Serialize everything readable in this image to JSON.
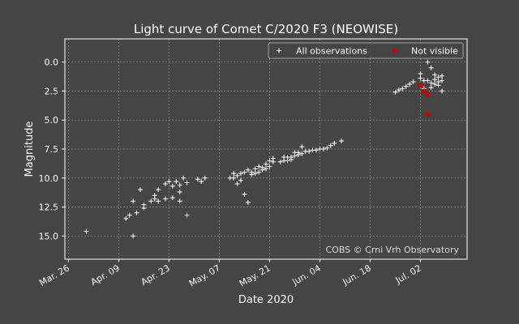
{
  "chart_data": {
    "type": "scatter",
    "title": "Light curve of Comet C/2020 F3 (NEOWISE)",
    "xlabel": "Date 2020",
    "ylabel": "Magnitude",
    "xlim": [
      "2020-03-25",
      "2020-07-15"
    ],
    "ylim": [
      17.0,
      -2.0
    ],
    "y_inverted": true,
    "grid": true,
    "legend_placement": "top-right",
    "x_ticks": [
      {
        "date": "2020-03-26",
        "label": "Mar. 26"
      },
      {
        "date": "2020-04-09",
        "label": "Apr. 09"
      },
      {
        "date": "2020-04-23",
        "label": "Apr. 23"
      },
      {
        "date": "2020-05-07",
        "label": "May. 07"
      },
      {
        "date": "2020-05-21",
        "label": "May. 21"
      },
      {
        "date": "2020-06-04",
        "label": "Jun. 04"
      },
      {
        "date": "2020-06-18",
        "label": "Jun. 18"
      },
      {
        "date": "2020-07-02",
        "label": "Jul. 02"
      }
    ],
    "y_ticks": [
      {
        "value": 0.0,
        "label": "0.0"
      },
      {
        "value": 2.5,
        "label": "2.5"
      },
      {
        "value": 5.0,
        "label": "5.0"
      },
      {
        "value": 7.5,
        "label": "7.5"
      },
      {
        "value": 10.0,
        "label": "10.0"
      },
      {
        "value": 12.5,
        "label": "12.5"
      },
      {
        "value": 15.0,
        "label": "15.0"
      }
    ],
    "annotation": "COBS © Crni Vrh Observatory",
    "series": [
      {
        "name": "All observations",
        "marker": "plus",
        "color": "#ffffff",
        "points": [
          [
            "2020-03-31",
            14.6
          ],
          [
            "2020-04-11",
            13.5
          ],
          [
            "2020-04-12",
            13.2
          ],
          [
            "2020-04-13",
            12.0
          ],
          [
            "2020-04-13",
            15.0
          ],
          [
            "2020-04-14",
            13.0
          ],
          [
            "2020-04-15",
            11.0
          ],
          [
            "2020-04-16",
            12.3
          ],
          [
            "2020-04-16",
            12.6
          ],
          [
            "2020-04-18",
            12.0
          ],
          [
            "2020-04-19",
            11.5
          ],
          [
            "2020-04-19",
            11.8
          ],
          [
            "2020-04-20",
            11.0
          ],
          [
            "2020-04-20",
            12.0
          ],
          [
            "2020-04-22",
            11.8
          ],
          [
            "2020-04-22",
            10.5
          ],
          [
            "2020-04-23",
            10.3
          ],
          [
            "2020-04-24",
            10.7
          ],
          [
            "2020-04-24",
            11.7
          ],
          [
            "2020-04-25",
            10.3
          ],
          [
            "2020-04-26",
            12.0
          ],
          [
            "2020-04-26",
            10.6
          ],
          [
            "2020-04-26",
            11.2
          ],
          [
            "2020-04-27",
            10.0
          ],
          [
            "2020-04-28",
            10.4
          ],
          [
            "2020-04-28",
            13.2
          ],
          [
            "2020-05-01",
            10.1
          ],
          [
            "2020-05-02",
            10.3
          ],
          [
            "2020-05-03",
            10.0
          ],
          [
            "2020-05-10",
            10.0
          ],
          [
            "2020-05-11",
            9.6
          ],
          [
            "2020-05-11",
            10.0
          ],
          [
            "2020-05-12",
            10.5
          ],
          [
            "2020-05-12",
            9.8
          ],
          [
            "2020-05-13",
            9.6
          ],
          [
            "2020-05-13",
            10.2
          ],
          [
            "2020-05-14",
            11.4
          ],
          [
            "2020-05-14",
            9.5
          ],
          [
            "2020-05-15",
            12.1
          ],
          [
            "2020-05-15",
            9.3
          ],
          [
            "2020-05-16",
            9.7
          ],
          [
            "2020-05-16",
            9.5
          ],
          [
            "2020-05-17",
            9.6
          ],
          [
            "2020-05-17",
            9.2
          ],
          [
            "2020-05-18",
            9.0
          ],
          [
            "2020-05-18",
            9.5
          ],
          [
            "2020-05-19",
            9.3
          ],
          [
            "2020-05-19",
            9.1
          ],
          [
            "2020-05-20",
            9.2
          ],
          [
            "2020-05-20",
            8.8
          ],
          [
            "2020-05-21",
            8.5
          ],
          [
            "2020-05-21",
            9.0
          ],
          [
            "2020-05-22",
            8.3
          ],
          [
            "2020-05-22",
            8.6
          ],
          [
            "2020-05-24",
            8.6
          ],
          [
            "2020-05-25",
            8.2
          ],
          [
            "2020-05-25",
            8.5
          ],
          [
            "2020-05-26",
            8.5
          ],
          [
            "2020-05-26",
            8.2
          ],
          [
            "2020-05-27",
            8.4
          ],
          [
            "2020-05-27",
            8.2
          ],
          [
            "2020-05-28",
            8.1
          ],
          [
            "2020-05-28",
            7.8
          ],
          [
            "2020-05-29",
            8.0
          ],
          [
            "2020-05-29",
            7.8
          ],
          [
            "2020-05-30",
            7.3
          ],
          [
            "2020-05-30",
            7.9
          ],
          [
            "2020-05-31",
            7.7
          ],
          [
            "2020-06-01",
            7.7
          ],
          [
            "2020-06-02",
            7.6
          ],
          [
            "2020-06-03",
            7.6
          ],
          [
            "2020-06-04",
            7.5
          ],
          [
            "2020-06-05",
            7.5
          ],
          [
            "2020-06-06",
            7.4
          ],
          [
            "2020-06-07",
            7.2
          ],
          [
            "2020-06-08",
            7.0
          ],
          [
            "2020-06-10",
            6.8
          ],
          [
            "2020-06-25",
            2.6
          ],
          [
            "2020-06-26",
            2.4
          ],
          [
            "2020-06-27",
            2.3
          ],
          [
            "2020-06-28",
            2.1
          ],
          [
            "2020-06-29",
            1.9
          ],
          [
            "2020-06-30",
            1.7
          ],
          [
            "2020-07-02",
            1.4
          ],
          [
            "2020-07-02",
            1.0
          ],
          [
            "2020-07-03",
            1.6
          ],
          [
            "2020-07-03",
            2.3
          ],
          [
            "2020-07-04",
            0.0
          ],
          [
            "2020-07-04",
            1.6
          ],
          [
            "2020-07-05",
            0.5
          ],
          [
            "2020-07-05",
            1.8
          ],
          [
            "2020-07-05",
            2.2
          ],
          [
            "2020-07-06",
            1.1
          ],
          [
            "2020-07-06",
            1.5
          ],
          [
            "2020-07-06",
            1.9
          ],
          [
            "2020-07-07",
            1.3
          ],
          [
            "2020-07-07",
            1.7
          ],
          [
            "2020-07-07",
            2.0
          ],
          [
            "2020-07-08",
            1.2
          ],
          [
            "2020-07-08",
            1.6
          ],
          [
            "2020-07-08",
            2.5
          ]
        ]
      },
      {
        "name": "Not visible",
        "marker": "dot",
        "color": "#cc0000",
        "points": [
          [
            "2020-07-02",
            2.0
          ],
          [
            "2020-07-03",
            2.5
          ],
          [
            "2020-07-04",
            2.8
          ],
          [
            "2020-07-04",
            4.5
          ]
        ]
      }
    ]
  }
}
